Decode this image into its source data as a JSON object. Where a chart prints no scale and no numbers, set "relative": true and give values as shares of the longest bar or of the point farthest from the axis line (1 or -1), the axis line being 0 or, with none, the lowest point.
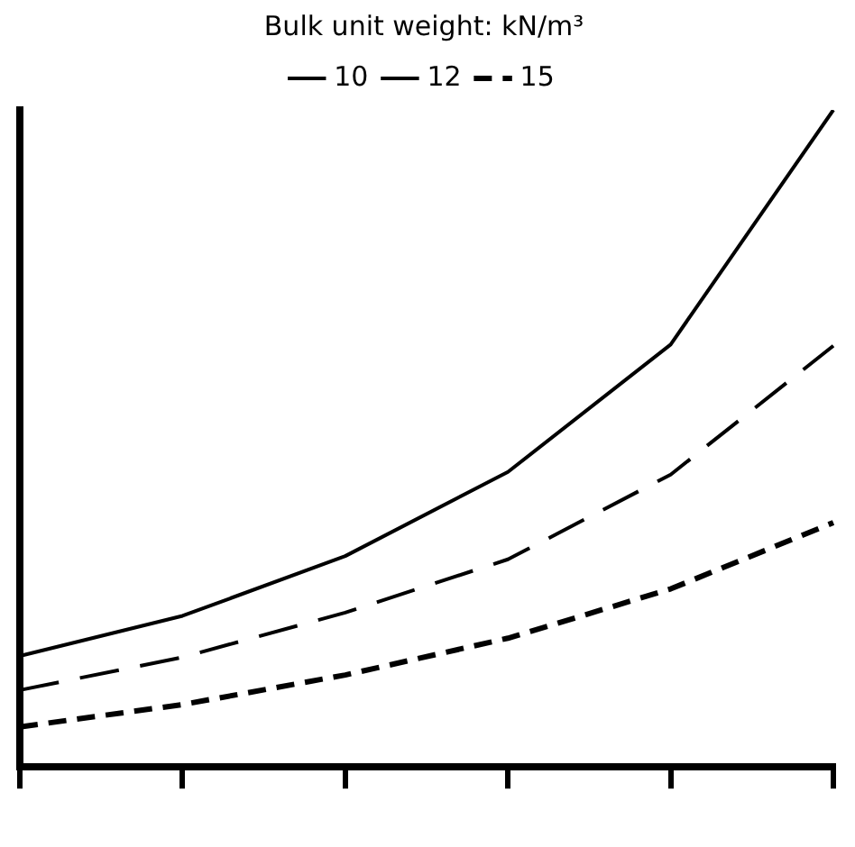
{
  "chart_data": {
    "type": "line",
    "relative": true,
    "categories": [
      null,
      null,
      null,
      null,
      null,
      null
    ],
    "legend": "top",
    "legend_title": "Bulk unit weight: kN/m³",
    "series": [
      {
        "name": "10",
        "color": "#000000",
        "line_style": "solid",
        "values": [
          0.169,
          0.23,
          0.321,
          0.449,
          0.643,
          1
        ]
      },
      {
        "name": "12",
        "color": "#000000",
        "line_style": "dashed",
        "values": [
          0.117,
          0.167,
          0.235,
          0.316,
          0.445,
          0.641
        ]
      },
      {
        "name": "15",
        "color": "#000000",
        "line_style": "dotted",
        "values": [
          0.061,
          0.095,
          0.14,
          0.196,
          0.271,
          0.372
        ]
      }
    ],
    "marker": "none"
  }
}
